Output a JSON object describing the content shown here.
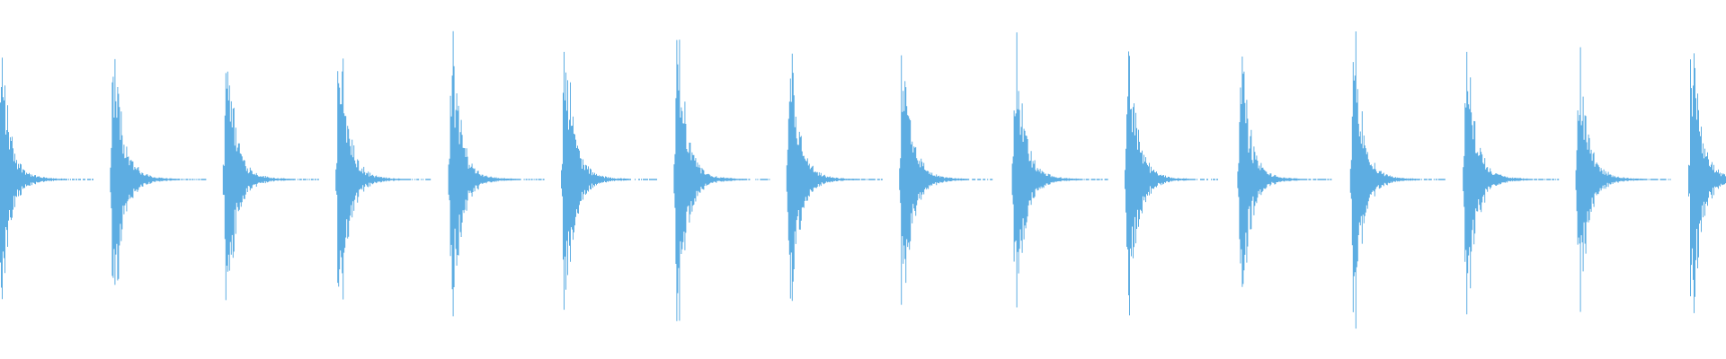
{
  "chart_data": {
    "type": "waveform",
    "title": "",
    "xlabel": "",
    "ylabel": "",
    "axes_visible": false,
    "grid": false,
    "ylim": [
      -1,
      1
    ],
    "color": "#5dade2",
    "background": "#ffffff",
    "burst_count": 16,
    "bursts": [
      {
        "index": 1,
        "peak": 0.79
      },
      {
        "index": 2,
        "peak": 0.89
      },
      {
        "index": 3,
        "peak": 0.9
      },
      {
        "index": 4,
        "peak": 0.9
      },
      {
        "index": 5,
        "peak": 0.85
      },
      {
        "index": 6,
        "peak": 0.91
      },
      {
        "index": 7,
        "peak": 0.9
      },
      {
        "index": 8,
        "peak": 0.82
      },
      {
        "index": 9,
        "peak": 0.88
      },
      {
        "index": 10,
        "peak": 0.87
      },
      {
        "index": 11,
        "peak": 0.88
      },
      {
        "index": 12,
        "peak": 0.79
      },
      {
        "index": 13,
        "peak": 0.92
      },
      {
        "index": 14,
        "peak": 0.89
      },
      {
        "index": 15,
        "peak": 0.82
      },
      {
        "index": 16,
        "peak": 0.9
      }
    ]
  }
}
